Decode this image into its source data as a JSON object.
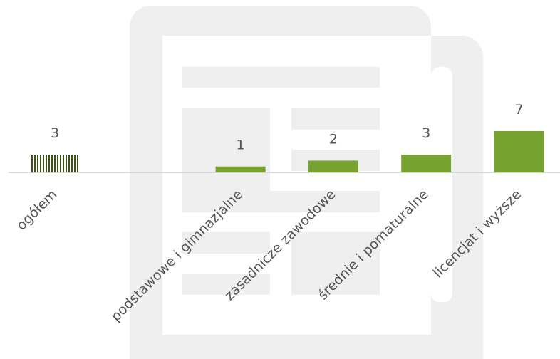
{
  "chart_data": {
    "type": "bar",
    "categories": [
      "ogółem",
      null,
      "podstawowe i gimnazjalne",
      "zasadnicze zawodowe",
      "średnie i pomaturalne",
      "licencjat i wyższe"
    ],
    "values": [
      3,
      null,
      1,
      2,
      3,
      7
    ],
    "colors": [
      "#3f5218",
      null,
      "#76a22f",
      "#76a22f",
      "#76a22f",
      "#76a22f"
    ],
    "hatched": [
      true,
      false,
      false,
      false,
      false,
      false
    ]
  }
}
